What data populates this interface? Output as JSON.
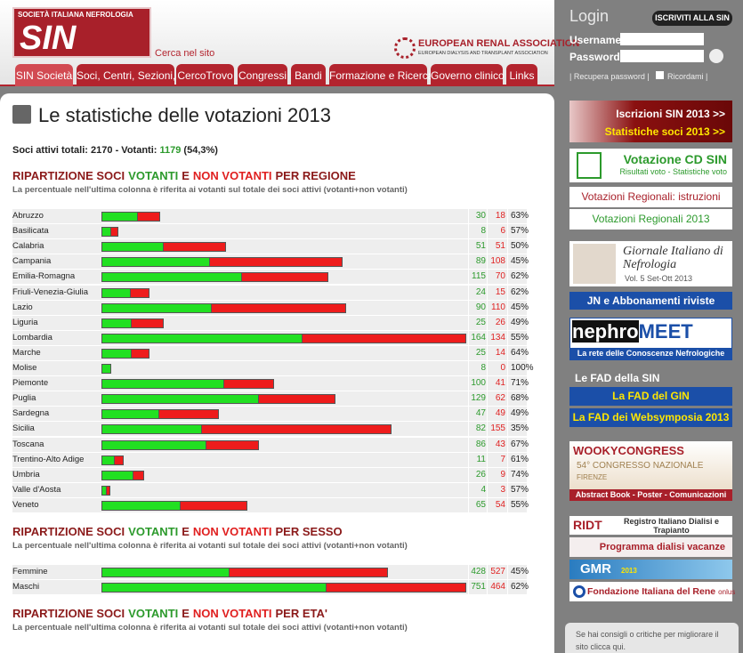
{
  "header": {
    "logo_top": "SOCIETÀ ITALIANA NEFROLOGIA",
    "logo": "SIN",
    "search": "Cerca nel sito",
    "era_title": "EUROPEAN RENAL ASSOCIATION",
    "era_subtitle": "EUROPEAN DIALYSIS AND TRANSPLANT ASSOCIATION"
  },
  "nav": [
    "SIN Società",
    "Soci, Centri, Sezioni, GdS",
    "CercoTrovo",
    "Congressi",
    "Bandi",
    "Formazione e Ricerca",
    "Governo clinico",
    "Links"
  ],
  "login": {
    "title": "Login",
    "join": "ISCRIVITI ALLA SIN",
    "username": "Username",
    "password": "Password",
    "recover": "Recupera password",
    "remember": "Ricordami"
  },
  "page": {
    "title": "Le statistiche delle votazioni 2013",
    "summary": {
      "label_total": "Soci attivi totali:",
      "total": 2170,
      "label_voters": "- Votanti:",
      "voters": 1179,
      "share": "(54,3%)"
    },
    "sections": [
      {
        "heading": [
          "RIPARTIZIONE SOCI",
          "VOTANTI",
          "E",
          "NON VOTANTI",
          "PER REGIONE"
        ],
        "note": "La percentuale nell'ultima colonna è riferita ai votanti sul totale dei soci attivi (votanti+non votanti)",
        "rows": [
          {
            "name": "Abruzzo",
            "voters": 30,
            "non_voters": 18,
            "pct": "63%"
          },
          {
            "name": "Basilicata",
            "voters": 8,
            "non_voters": 6,
            "pct": "57%"
          },
          {
            "name": "Calabria",
            "voters": 51,
            "non_voters": 51,
            "pct": "50%"
          },
          {
            "name": "Campania",
            "voters": 89,
            "non_voters": 108,
            "pct": "45%"
          },
          {
            "name": "Emilia-Romagna",
            "voters": 115,
            "non_voters": 70,
            "pct": "62%"
          },
          {
            "name": "Friuli-Venezia-Giulia",
            "voters": 24,
            "non_voters": 15,
            "pct": "62%"
          },
          {
            "name": "Lazio",
            "voters": 90,
            "non_voters": 110,
            "pct": "45%"
          },
          {
            "name": "Liguria",
            "voters": 25,
            "non_voters": 26,
            "pct": "49%"
          },
          {
            "name": "Lombardia",
            "voters": 164,
            "non_voters": 134,
            "pct": "55%"
          },
          {
            "name": "Marche",
            "voters": 25,
            "non_voters": 14,
            "pct": "64%"
          },
          {
            "name": "Molise",
            "voters": 8,
            "non_voters": 0,
            "pct": "100%"
          },
          {
            "name": "Piemonte",
            "voters": 100,
            "non_voters": 41,
            "pct": "71%"
          },
          {
            "name": "Puglia",
            "voters": 129,
            "non_voters": 62,
            "pct": "68%"
          },
          {
            "name": "Sardegna",
            "voters": 47,
            "non_voters": 49,
            "pct": "49%"
          },
          {
            "name": "Sicilia",
            "voters": 82,
            "non_voters": 155,
            "pct": "35%"
          },
          {
            "name": "Toscana",
            "voters": 86,
            "non_voters": 43,
            "pct": "67%"
          },
          {
            "name": "Trentino-Alto Adige",
            "voters": 11,
            "non_voters": 7,
            "pct": "61%"
          },
          {
            "name": "Umbria",
            "voters": 26,
            "non_voters": 9,
            "pct": "74%"
          },
          {
            "name": "Valle d'Aosta",
            "voters": 4,
            "non_voters": 3,
            "pct": "57%"
          },
          {
            "name": "Veneto",
            "voters": 65,
            "non_voters": 54,
            "pct": "55%"
          }
        ]
      },
      {
        "heading": [
          "RIPARTIZIONE SOCI",
          "VOTANTI",
          "E",
          "NON VOTANTI",
          "PER SESSO"
        ],
        "note": "La percentuale nell'ultima colonna è riferita ai votanti sul totale dei soci attivi (votanti+non votanti)",
        "rows": [
          {
            "name": "Femmine",
            "voters": 428,
            "non_voters": 527,
            "pct": "45%"
          },
          {
            "name": "Maschi",
            "voters": 751,
            "non_voters": 464,
            "pct": "62%"
          }
        ]
      },
      {
        "heading": [
          "RIPARTIZIONE SOCI",
          "VOTANTI",
          "E",
          "NON VOTANTI",
          "PER ETA'"
        ],
        "note": "La percentuale nell'ultima colonna è riferita ai votanti sul totale dei soci attivi (votanti+non votanti)"
      }
    ]
  },
  "sidebar": {
    "iscrizioni": "Iscrizioni SIN 2013 >>",
    "statistiche": "Statistiche soci 2013 >>",
    "votazione": "Votazione CD SIN",
    "risultati": "Risultati voto - Statistiche voto",
    "istruzioni": "Votazioni Regionali: istruzioni",
    "regionali": "Votazioni Regionali 2013",
    "giornale": "Giornale Italiano di Nefrologia",
    "volume": "Vol. 5 Set-Ott 2013",
    "jn": "JN e Abbonamenti riviste",
    "nephro": "nephro",
    "meet": "MEET",
    "rete": "La rete delle Conoscenze Nefrologiche",
    "fad_title": "Le FAD della SIN",
    "fad_gin": "La FAD del GIN",
    "fad_web": "La FAD dei Websymposia 2013",
    "wooky": "WOOKYCONGRESS",
    "congresso": "54° CONGRESSO NAZIONALE",
    "firenze": "FIRENZE",
    "abstract": "Abstract Book - Poster - Comunicazioni",
    "ridt": "RIDT",
    "registro": "Registro Italiano Dialisi e Trapianto",
    "vacanze": "Programma dialisi vacanze",
    "gmr": "GMR",
    "gmr_year": "2013",
    "fondazione": "Fondazione Italiana del Rene",
    "onlus": "onlus",
    "feedback": "Se hai consigli o critiche per migliorare il sito clicca qui."
  }
}
